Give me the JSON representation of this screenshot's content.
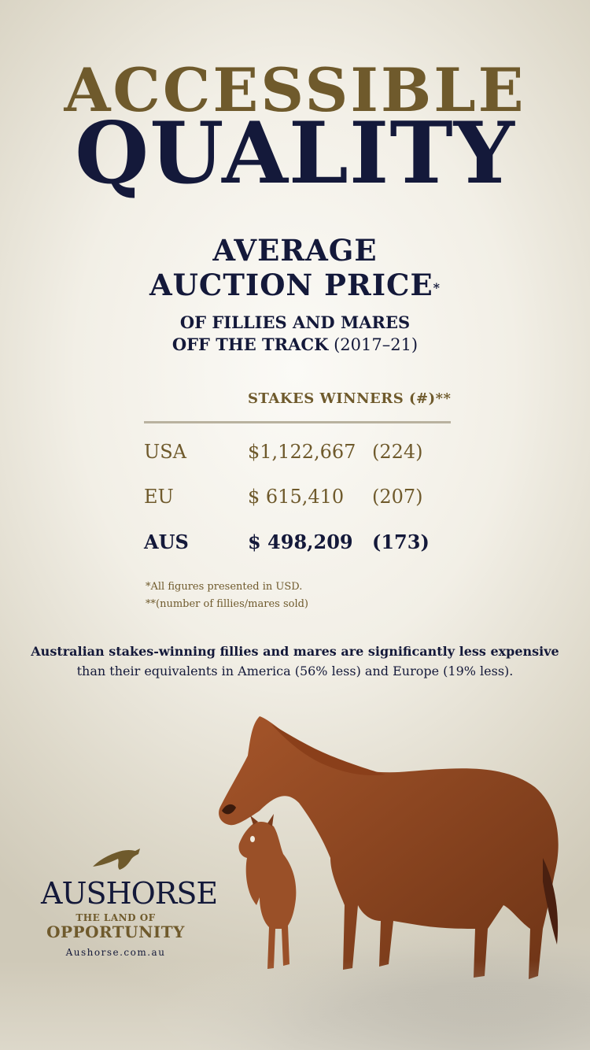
{
  "headline": {
    "line1": "ACCESSIBLE",
    "line2": "QUALITY"
  },
  "subhead": {
    "line1": "AVERAGE",
    "line2": "AUCTION PRICE",
    "line2_mark": "*",
    "line3": "OF FILLIES AND MARES",
    "line4_bold": "OFF THE TRACK",
    "line4_years": "(2017–21)"
  },
  "table": {
    "stakes_header": "STAKES WINNERS (#)**",
    "rows": [
      {
        "region": "USA",
        "price": "$1,122,667",
        "winners": "(224)"
      },
      {
        "region": "EU",
        "price": "$ 615,410",
        "winners": "(207)"
      },
      {
        "region": "AUS",
        "price": "$ 498,209",
        "winners": "(173)"
      }
    ]
  },
  "footnotes": {
    "note1": "*All figures presented in USD.",
    "note2": "**(number of fillies/mares sold)"
  },
  "summary": {
    "line1": "Australian stakes-winning fillies and mares are significantly less expensive",
    "line2": "than their equivalents in America (56% less) and Europe (19% less)."
  },
  "logo": {
    "name": "AUSHORSE",
    "tagline1": "THE LAND OF",
    "tagline2": "OPPORTUNITY",
    "url": "Aushorse.com.au"
  },
  "colors": {
    "gold": "#6f5a2c",
    "navy": "#14193a",
    "chestnut": "#8a4320"
  }
}
